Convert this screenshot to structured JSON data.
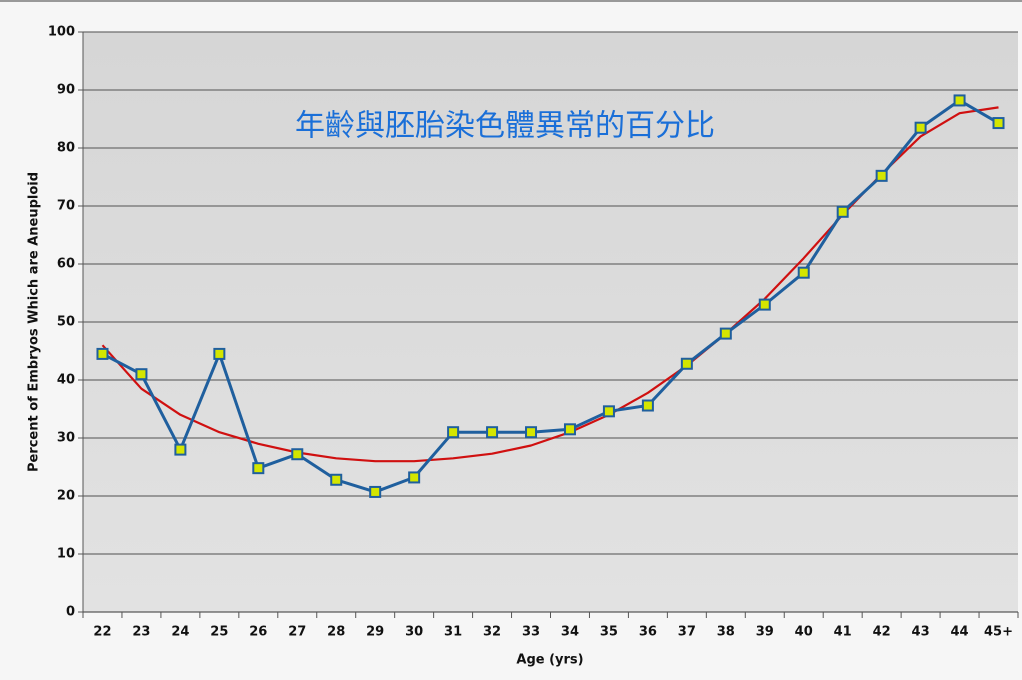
{
  "chart_data": {
    "type": "line",
    "title": "年齡與胚胎染色體異常的百分比",
    "x_label": "Age (yrs)",
    "y_label": "Percent of Embryos Which are Aneuploid",
    "categories": [
      "22",
      "23",
      "24",
      "25",
      "26",
      "27",
      "28",
      "29",
      "30",
      "31",
      "32",
      "33",
      "34",
      "35",
      "36",
      "37",
      "38",
      "39",
      "40",
      "41",
      "42",
      "43",
      "44",
      "45+"
    ],
    "series": [
      {
        "color": "#1f5f9e",
        "marker_color": "#d4e600",
        "values": [
          44.5,
          41,
          28,
          44.5,
          24.8,
          27.2,
          22.8,
          20.7,
          23.2,
          31,
          31,
          31,
          31.5,
          34.6,
          35.6,
          42.8,
          48,
          53,
          58.5,
          69,
          75.2,
          83.5,
          88.2,
          84.3
        ]
      },
      {
        "color": "#d01010",
        "values": [
          46,
          38.5,
          34,
          31,
          29,
          27.5,
          26.5,
          26,
          26,
          26.5,
          27.3,
          28.7,
          31,
          34,
          37.8,
          42.5,
          48,
          54,
          61,
          68.5,
          75.5,
          82,
          86,
          87
        ]
      }
    ],
    "ylim": [
      0,
      100
    ],
    "yticks": [
      0,
      10,
      20,
      30,
      40,
      50,
      60,
      70,
      80,
      90,
      100
    ],
    "grid": true
  }
}
